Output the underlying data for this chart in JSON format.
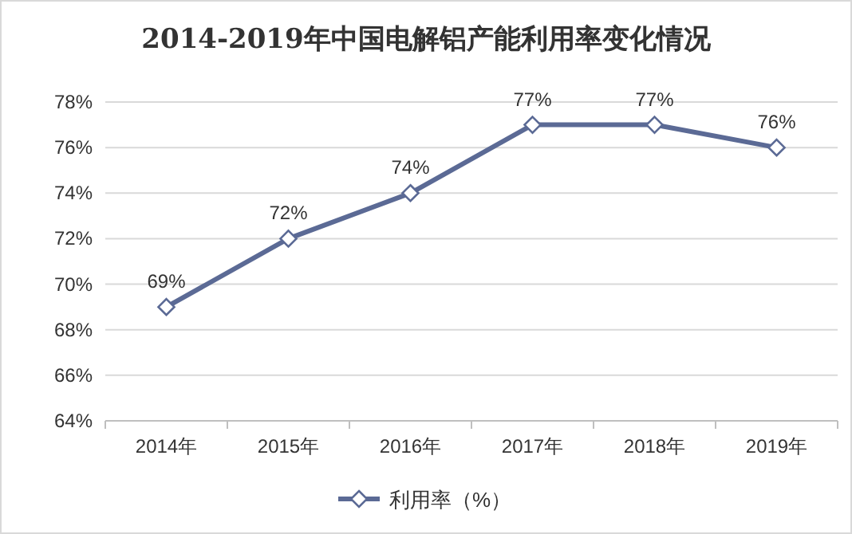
{
  "chart_data": {
    "type": "line",
    "title": "2014-2019年中国电解铝产能利用率变化情况",
    "categories": [
      "2014年",
      "2015年",
      "2016年",
      "2017年",
      "2018年",
      "2019年"
    ],
    "series": [
      {
        "name": "利用率（%）",
        "color": "#5b6a95",
        "values": [
          69,
          72,
          74,
          77,
          77,
          76
        ],
        "value_labels": [
          "69%",
          "72%",
          "74%",
          "77%",
          "77%",
          "76%"
        ]
      }
    ],
    "ylim": [
      64,
      78
    ],
    "yticks": [
      {
        "value": 64,
        "label": "64%"
      },
      {
        "value": 66,
        "label": "66%"
      },
      {
        "value": 68,
        "label": "68%"
      },
      {
        "value": 70,
        "label": "70%"
      },
      {
        "value": 72,
        "label": "72%"
      },
      {
        "value": 74,
        "label": "74%"
      },
      {
        "value": 76,
        "label": "76%"
      },
      {
        "value": 78,
        "label": "78%"
      }
    ],
    "grid": "y",
    "legend": "bottom",
    "marker": "diamond",
    "line_style": "solid"
  }
}
